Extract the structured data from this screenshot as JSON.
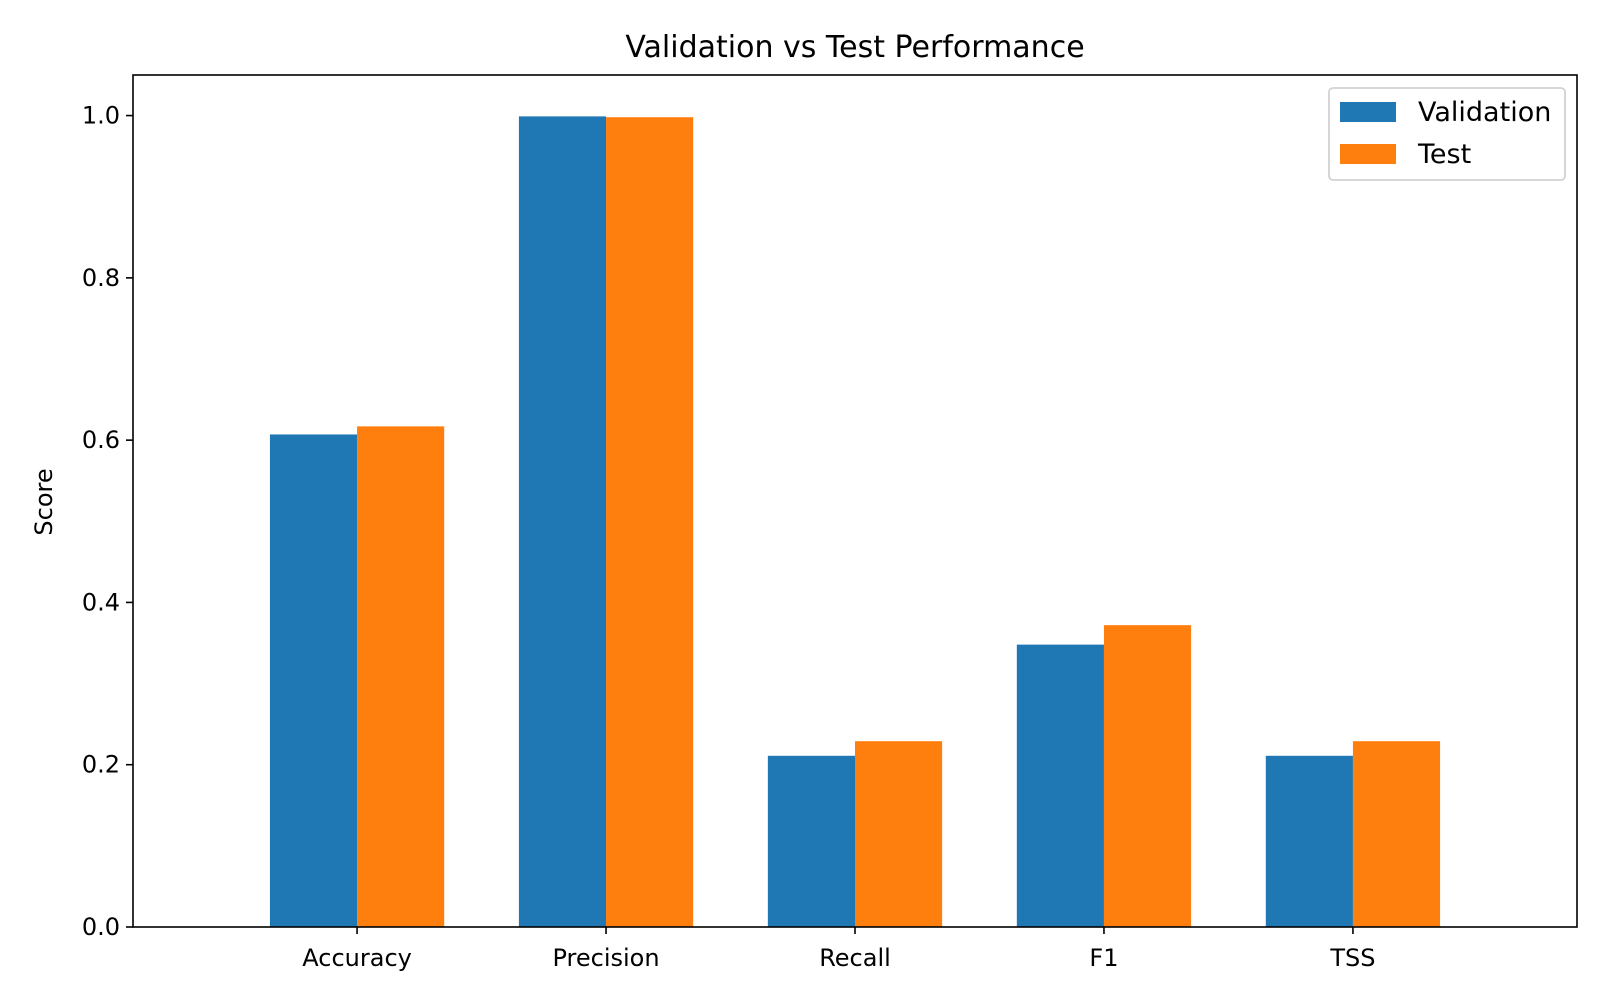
{
  "chart_data": {
    "type": "bar",
    "title": "Validation vs Test Performance",
    "xlabel": "",
    "ylabel": "Score",
    "categories": [
      "Accuracy",
      "Precision",
      "Recall",
      "F1",
      "TSS"
    ],
    "series": [
      {
        "name": "Validation",
        "color": "#1f77b4",
        "values": [
          0.607,
          0.999,
          0.211,
          0.348,
          0.211
        ]
      },
      {
        "name": "Test",
        "color": "#ff7f0e",
        "values": [
          0.617,
          0.998,
          0.229,
          0.372,
          0.229
        ]
      }
    ],
    "ylim": [
      0,
      1.05
    ],
    "yticks": [
      0.0,
      0.2,
      0.4,
      0.6,
      0.8,
      1.0
    ],
    "ytick_labels": [
      "0.0",
      "0.2",
      "0.4",
      "0.6",
      "0.8",
      "1.0"
    ],
    "grid": false,
    "legend_position": "top-right"
  }
}
